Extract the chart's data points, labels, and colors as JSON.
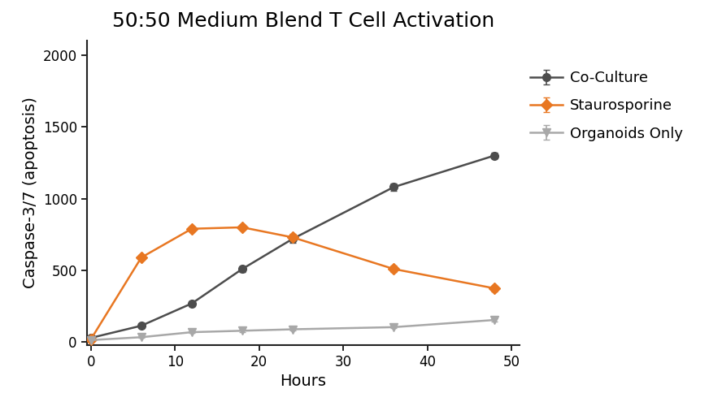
{
  "title": "50:50 Medium Blend T Cell Activation",
  "xlabel": "Hours",
  "ylabel": "Caspase-3/7 (apoptosis)",
  "xlim": [
    -0.5,
    51
  ],
  "ylim": [
    -20,
    2100
  ],
  "yticks": [
    0,
    500,
    1000,
    1500,
    2000
  ],
  "xticks": [
    0,
    10,
    20,
    30,
    40,
    50
  ],
  "series": [
    {
      "label": "Co-Culture",
      "x": [
        0,
        6,
        12,
        18,
        24,
        36,
        48
      ],
      "y": [
        30,
        115,
        270,
        510,
        720,
        1080,
        1300
      ],
      "yerr": [
        8,
        12,
        18,
        20,
        30,
        25,
        22
      ],
      "color": "#4d4d4d",
      "marker": "o",
      "markersize": 7,
      "linewidth": 1.8
    },
    {
      "label": "Staurosporine",
      "x": [
        0,
        6,
        12,
        18,
        24,
        36,
        48
      ],
      "y": [
        20,
        590,
        790,
        800,
        730,
        510,
        375
      ],
      "yerr": [
        5,
        15,
        18,
        18,
        25,
        22,
        20
      ],
      "color": "#e87722",
      "marker": "D",
      "markersize": 7,
      "linewidth": 1.8
    },
    {
      "label": "Organoids Only",
      "x": [
        0,
        6,
        12,
        18,
        24,
        36,
        48
      ],
      "y": [
        15,
        35,
        70,
        80,
        90,
        105,
        155
      ],
      "yerr": [
        4,
        6,
        8,
        8,
        8,
        8,
        12
      ],
      "color": "#a8a8a8",
      "marker": "v",
      "markersize": 7,
      "linewidth": 1.8
    }
  ],
  "background_color": "#ffffff",
  "title_fontsize": 18,
  "label_fontsize": 14,
  "tick_fontsize": 12,
  "legend_fontsize": 13
}
